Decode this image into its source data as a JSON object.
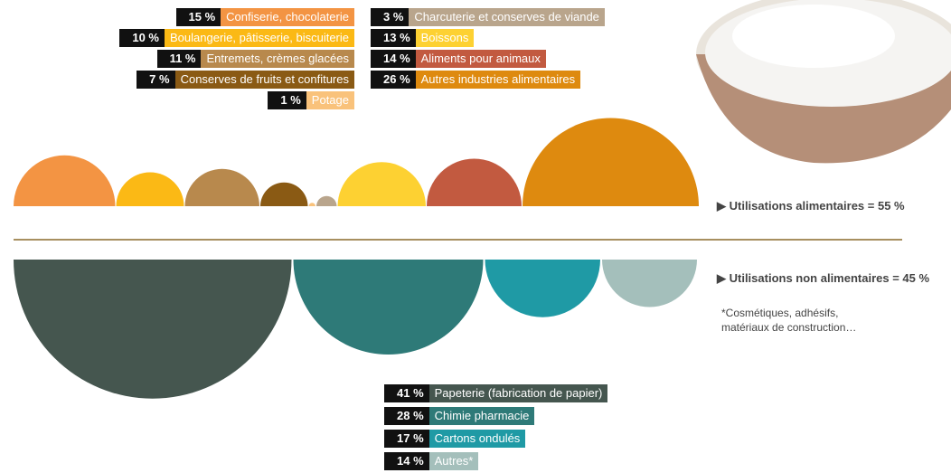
{
  "chart_data": [
    {
      "type": "semicircle",
      "orientation": "up",
      "summary": "Utilisations alimentaires = 55 %",
      "categories": [
        "Confiserie, chocolaterie",
        "Boulangerie, pâtisserie, biscuiterie",
        "Entremets, crèmes glacées",
        "Conserves de fruits et confitures",
        "Potage",
        "Charcuterie et conserves de viande",
        "Boissons",
        "Aliments pour animaux",
        "Autres industries alimentaires"
      ],
      "values": [
        15,
        10,
        11,
        7,
        1,
        3,
        13,
        14,
        26
      ],
      "value_labels": [
        "15 %",
        "10 %",
        "11 %",
        "7 %",
        "1 %",
        "3 %",
        "13 %",
        "14 %",
        "26 %"
      ],
      "colors": [
        "#f39443",
        "#fbb915",
        "#b8894d",
        "#8a5a14",
        "#f9c27b",
        "#b9a58c",
        "#fdd132",
        "#c25a40",
        "#de8a0f"
      ]
    },
    {
      "type": "semicircle",
      "orientation": "down",
      "summary": "Utilisations non alimentaires = 45 %",
      "note": [
        "*Cosmétiques, adhésifs,",
        "matériaux de construction…"
      ],
      "categories": [
        "Papeterie (fabrication de papier)",
        "Chimie pharmacie",
        "Cartons ondulés",
        "Autres*"
      ],
      "values": [
        41,
        28,
        17,
        14
      ],
      "value_labels": [
        "41 %",
        "28 %",
        "17 %",
        "14 %"
      ],
      "colors": [
        "#45564f",
        "#2e7a78",
        "#1f9aa5",
        "#a4bfbb"
      ]
    }
  ]
}
